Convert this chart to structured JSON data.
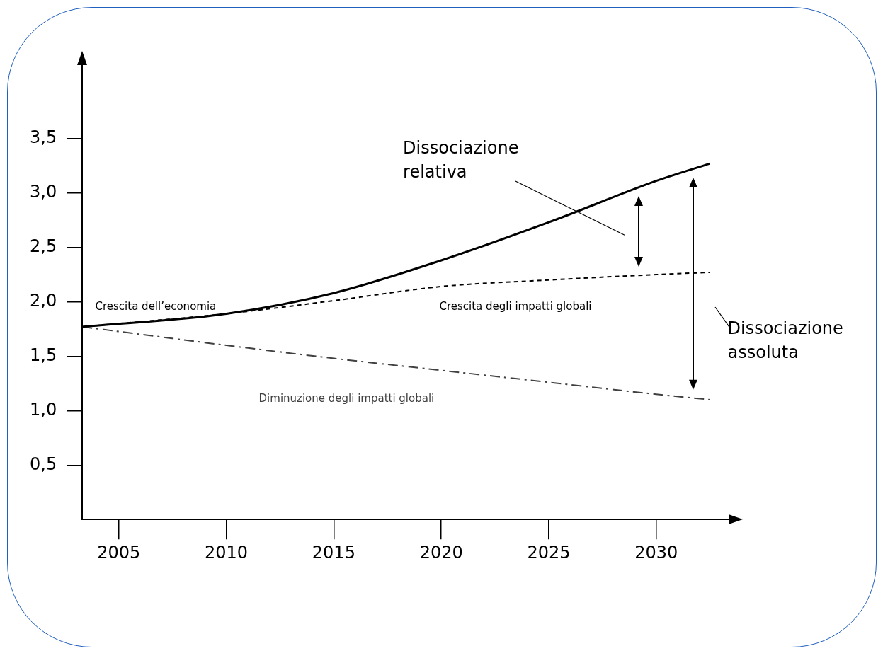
{
  "chart_data": {
    "type": "line",
    "x": [
      2003.3,
      2010,
      2015,
      2020,
      2025,
      2030,
      2032.5
    ],
    "xlim": [
      2003.3,
      2033.5
    ],
    "xticks": [
      2005,
      2010,
      2015,
      2020,
      2025,
      2030
    ],
    "ylim": [
      0,
      4.2
    ],
    "yticks": [
      {
        "value": 0.5,
        "label": "0,5"
      },
      {
        "value": 1.0,
        "label": "1,0"
      },
      {
        "value": 1.5,
        "label": "1,5"
      },
      {
        "value": 2.0,
        "label": "2,0"
      },
      {
        "value": 2.5,
        "label": "2,5"
      },
      {
        "value": 3.0,
        "label": "3,0"
      },
      {
        "value": 3.5,
        "label": "3,5"
      }
    ],
    "series": [
      {
        "name": "Crescita dell’economia",
        "color": "#000000",
        "line_style": "solid",
        "values": [
          1.77,
          1.89,
          2.08,
          2.38,
          2.73,
          3.11,
          3.27
        ]
      },
      {
        "name": "Crescita degli impatti globali",
        "color": "#000000",
        "line_style": "dashed",
        "values": [
          1.77,
          1.89,
          2.01,
          2.14,
          2.2,
          2.25,
          2.27
        ]
      },
      {
        "name": "Diminuzione degli impatti globali",
        "color": "#404040",
        "line_style": "dashdot",
        "values": [
          1.77,
          1.6,
          1.48,
          1.37,
          1.26,
          1.15,
          1.1
        ]
      }
    ],
    "annotations": [
      "Dissociazione relativa",
      "Dissociazione assoluta"
    ],
    "grid": false,
    "marker": "none"
  }
}
